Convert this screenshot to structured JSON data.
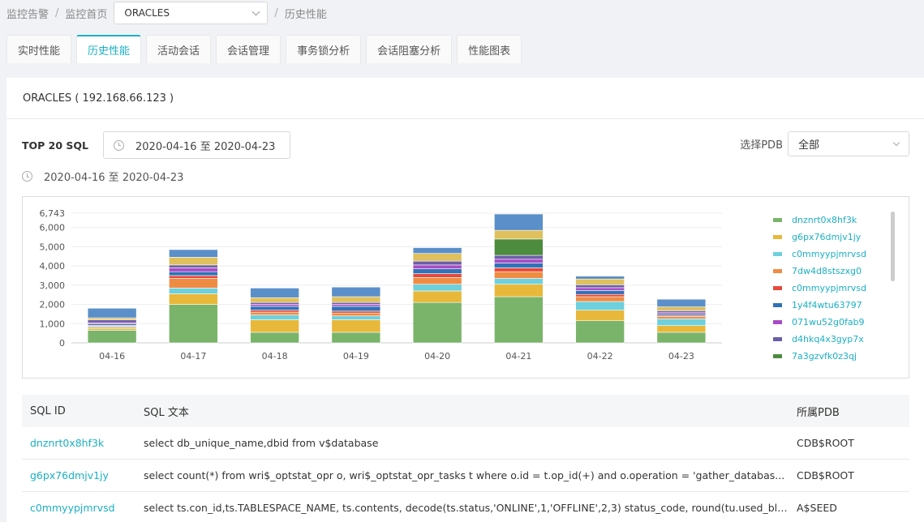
{
  "breadcrumb": {
    "item1": "监控告警",
    "item2": "监控首页",
    "db_selected": "ORACLES",
    "item3": "历史性能"
  },
  "tabs": [
    {
      "label": "实时性能",
      "active": false
    },
    {
      "label": "历史性能",
      "active": true
    },
    {
      "label": "活动会话",
      "active": false
    },
    {
      "label": "会话管理",
      "active": false
    },
    {
      "label": "事务锁分析",
      "active": false
    },
    {
      "label": "会话阻塞分析",
      "active": false
    },
    {
      "label": "性能图表",
      "active": false
    }
  ],
  "card": {
    "title": "ORACLES ( 192.168.66.123 )",
    "top_label": "TOP 20 SQL",
    "date_range": "2020-04-16 至 2020-04-23",
    "range_text": "2020-04-16 至 2020-04-23",
    "pdb_label": "选择PDB",
    "pdb_selected": "全部"
  },
  "chart_data": {
    "type": "bar",
    "stacked": true,
    "categories": [
      "04-16",
      "04-17",
      "04-18",
      "04-19",
      "04-20",
      "04-21",
      "04-22",
      "04-23"
    ],
    "yticks": [
      0,
      1000,
      2000,
      3000,
      4000,
      5000,
      6000,
      6743
    ],
    "ylim": [
      0,
      6743
    ],
    "grid": true,
    "legend_position": "right",
    "series": [
      {
        "name": "dnznrt0x8hf3k",
        "color": "#7ab46a",
        "values": [
          650,
          2000,
          550,
          550,
          2100,
          2400,
          1150,
          550
        ]
      },
      {
        "name": "g6px76dmjv1jy",
        "color": "#e8b83a",
        "values": [
          100,
          550,
          650,
          650,
          600,
          650,
          550,
          350
        ]
      },
      {
        "name": "c0mmyypjmrvsd",
        "color": "#6dd0dc",
        "values": [
          60,
          300,
          250,
          200,
          350,
          300,
          450,
          350
        ]
      },
      {
        "name": "7dw4d8stszxg0",
        "color": "#ef8c44",
        "values": [
          60,
          500,
          150,
          150,
          350,
          350,
          250,
          120
        ]
      },
      {
        "name": "c0mmyypjmrvsd",
        "color": "#e54a3c",
        "values": [
          40,
          150,
          100,
          100,
          200,
          200,
          120,
          60
        ]
      },
      {
        "name": "1y4f4wtu63797",
        "color": "#2f72b8",
        "values": [
          80,
          200,
          200,
          250,
          250,
          250,
          200,
          80
        ]
      },
      {
        "name": "071wu52g0fab9",
        "color": "#a94cc4",
        "values": [
          60,
          200,
          100,
          100,
          200,
          200,
          150,
          60
        ]
      },
      {
        "name": "d4hkq4x3gyp7x",
        "color": "#6a5ea8",
        "values": [
          150,
          150,
          100,
          100,
          200,
          200,
          150,
          100
        ]
      },
      {
        "name": "7a3gzvfk0z3qj",
        "color": "#4d8b3e",
        "values": [
          0,
          0,
          0,
          0,
          0,
          850,
          0,
          0
        ]
      },
      {
        "name": "",
        "color": "#e0c05c",
        "values": [
          100,
          400,
          250,
          300,
          400,
          450,
          300,
          200
        ]
      },
      {
        "name": "",
        "color": "#5b8fc9",
        "values": [
          500,
          400,
          500,
          500,
          300,
          850,
          150,
          400
        ]
      }
    ]
  },
  "table": {
    "headers": [
      "SQL ID",
      "SQL 文本",
      "所属PDB"
    ],
    "rows": [
      {
        "id": "dnznrt0x8hf3k",
        "text": "select db_unique_name,dbid from v$database",
        "pdb": "CDB$ROOT"
      },
      {
        "id": "g6px76dmjv1jy",
        "text": "select count(*) from wri$_optstat_opr o, wri$_optstat_opr_tasks t where o.id = t.op_id(+) and o.operation = 'gather_databas...",
        "pdb": "CDB$ROOT"
      },
      {
        "id": "c0mmyypjmrvsd",
        "text": "select ts.con_id,ts.TABLESPACE_NAME, ts.contents, decode(ts.status,'ONLINE',1,'OFFLINE',2,3) status_code, round(tu.used_blo...",
        "pdb": "A$SEED"
      }
    ]
  }
}
